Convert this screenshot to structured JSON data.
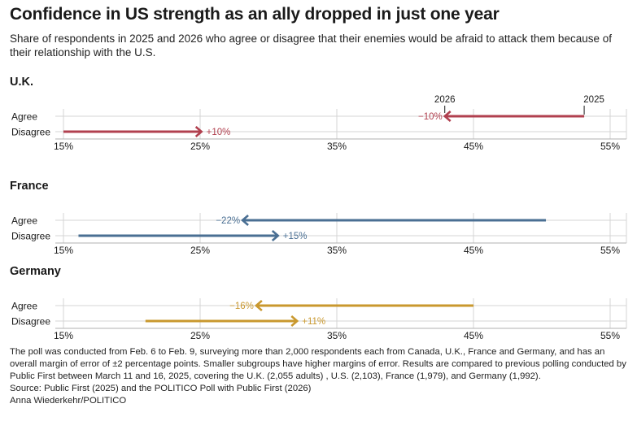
{
  "title": "Confidence in US strength as an ally dropped in just one year",
  "subtitle": "Share of respondents in 2025 and 2026 who agree or disagree that their enemies would be afraid to attack them because of their relationship with the U.S.",
  "colors": {
    "uk": "#b1404f",
    "france": "#4a6f93",
    "germany": "#c9982e",
    "grid": "#d4d4d4",
    "axis": "#b0b0b0",
    "text": "#1a1a1a"
  },
  "chart_data": {
    "type": "arrow-dumbbell",
    "x_axis": {
      "range": [
        15,
        55
      ],
      "ticks": [
        15,
        25,
        35,
        45,
        55
      ],
      "tick_labels": [
        "15%",
        "25%",
        "35%",
        "45%",
        "55%"
      ],
      "unit": "%"
    },
    "year_labels": {
      "from": "2025",
      "to": "2026"
    },
    "row_labels": [
      "Agree",
      "Disagree"
    ],
    "panels": [
      {
        "country": "U.K.",
        "color_key": "uk",
        "show_year_labels": true,
        "rows": [
          {
            "label": "Agree",
            "from": 53.1,
            "to": 42.9,
            "change": "−10%"
          },
          {
            "label": "Disagree",
            "from": 15.0,
            "to": 25.1,
            "change": "+10%"
          }
        ]
      },
      {
        "country": "France",
        "color_key": "france",
        "show_year_labels": false,
        "rows": [
          {
            "label": "Agree",
            "from": 50.3,
            "to": 28.1,
            "change": "−22%"
          },
          {
            "label": "Disagree",
            "from": 16.1,
            "to": 30.7,
            "change": "+15%"
          }
        ]
      },
      {
        "country": "Germany",
        "color_key": "germany",
        "show_year_labels": false,
        "rows": [
          {
            "label": "Agree",
            "from": 45.0,
            "to": 29.1,
            "change": "−16%"
          },
          {
            "label": "Disagree",
            "from": 21.0,
            "to": 32.1,
            "change": "+11%"
          }
        ]
      }
    ]
  },
  "notes": {
    "methodology": "The poll was conducted from Feb. 6 to Feb. 9, surveying more than 2,000 respondents each from Canada, U.K., France and Germany, and has an overall margin of error of ±2 percentage points. Smaller subgroups have higher margins of error. Results are compared to previous polling conducted by Public First between March 11 and 16, 2025, covering the U.K. (2,055 adults) , U.S. (2,103), France (1,979), and Germany (1,992).",
    "source": "Source: Public First (2025) and the POLITICO Poll with Public First (2026)",
    "credit": "Anna Wiederkehr/POLITICO"
  }
}
